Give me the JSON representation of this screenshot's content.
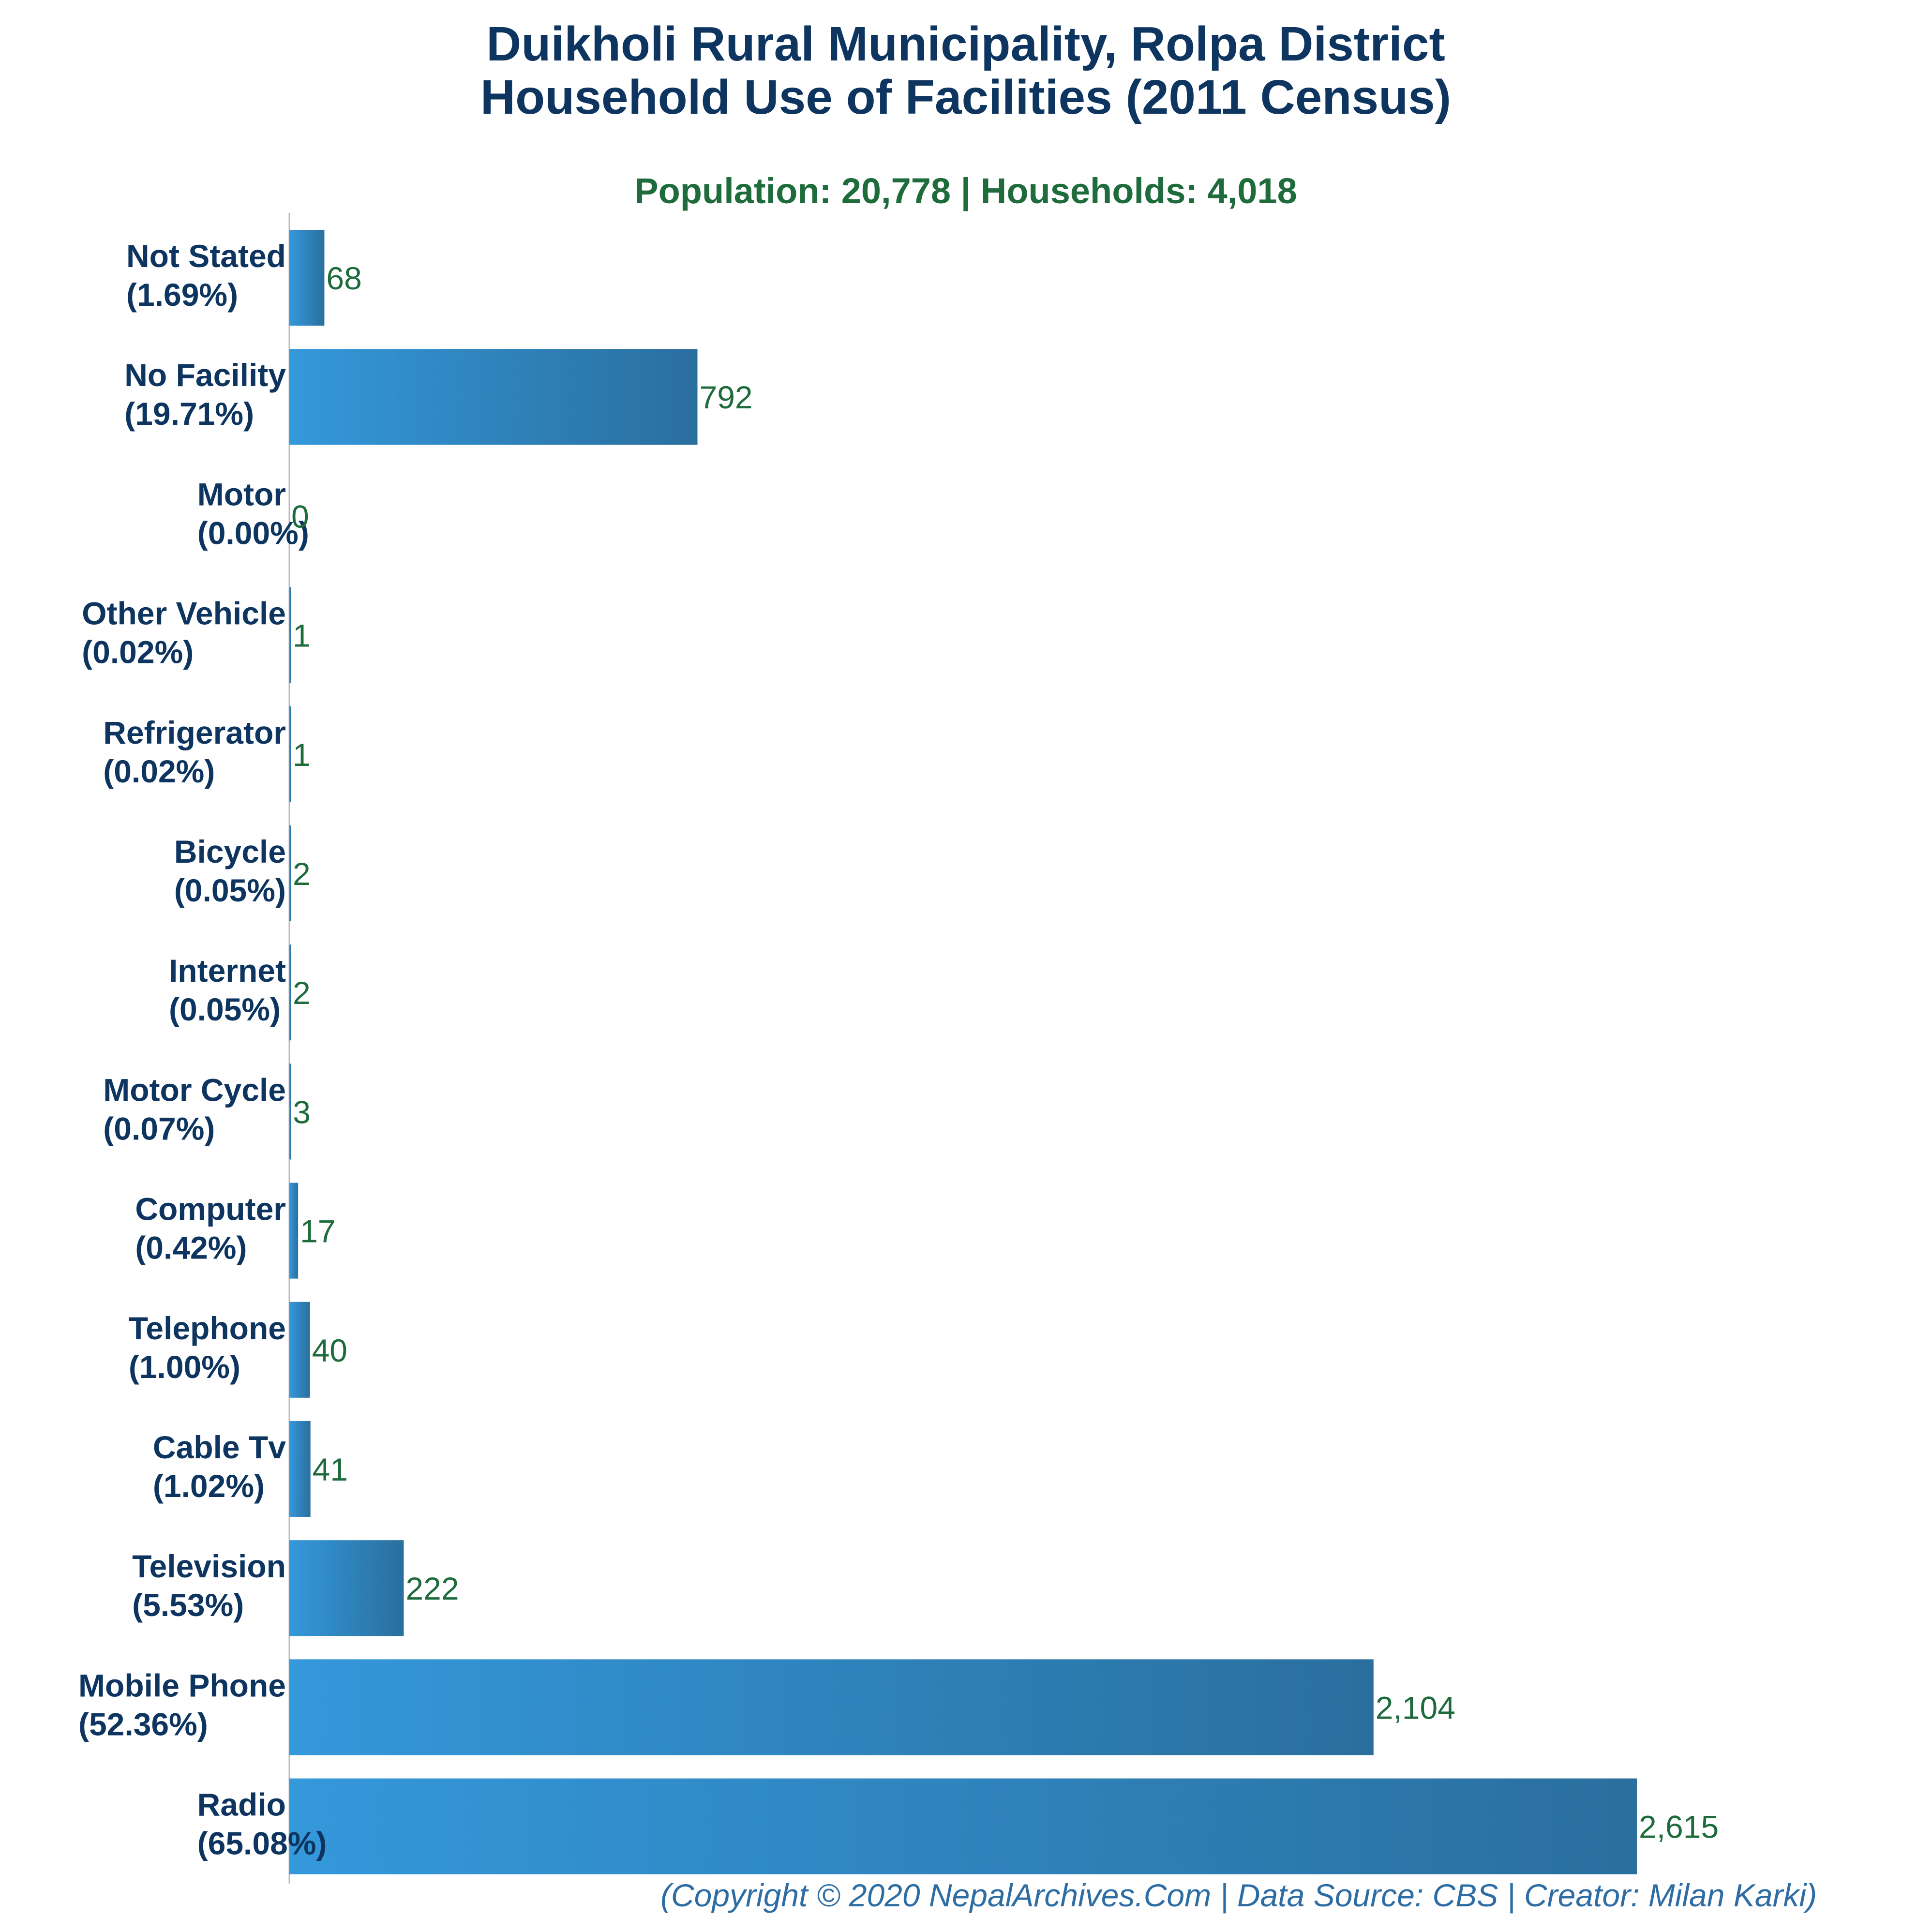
{
  "chart_data": {
    "type": "bar",
    "orientation": "horizontal",
    "title_line1": "Duikholi Rural Municipality, Rolpa District",
    "title_line2": "Household Use of Facilities (2011 Census)",
    "subtitle": "Population: 20,778 | Households: 4,018",
    "xlabel": "",
    "ylabel": "",
    "grid": false,
    "bar_color_start": "#3498db",
    "bar_color_end": "#2a6f9e",
    "categories": [
      {
        "name": "Not Stated",
        "pct": "(1.69%)",
        "value": 68,
        "value_label": "68"
      },
      {
        "name": "No Facility",
        "pct": "(19.71%)",
        "value": 792,
        "value_label": "792"
      },
      {
        "name": "Motor",
        "pct": "(0.00%)",
        "value": 0,
        "value_label": "0"
      },
      {
        "name": "Other Vehicle",
        "pct": "(0.02%)",
        "value": 1,
        "value_label": "1"
      },
      {
        "name": "Refrigerator",
        "pct": "(0.02%)",
        "value": 1,
        "value_label": "1"
      },
      {
        "name": "Bicycle",
        "pct": "(0.05%)",
        "value": 2,
        "value_label": "2"
      },
      {
        "name": "Internet",
        "pct": "(0.05%)",
        "value": 2,
        "value_label": "2"
      },
      {
        "name": "Motor Cycle",
        "pct": "(0.07%)",
        "value": 3,
        "value_label": "3"
      },
      {
        "name": "Computer",
        "pct": "(0.42%)",
        "value": 17,
        "value_label": "17"
      },
      {
        "name": "Telephone",
        "pct": "(1.00%)",
        "value": 40,
        "value_label": "40"
      },
      {
        "name": "Cable Tv",
        "pct": "(1.02%)",
        "value": 41,
        "value_label": "41"
      },
      {
        "name": "Television",
        "pct": "(5.53%)",
        "value": 222,
        "value_label": "222"
      },
      {
        "name": "Mobile Phone",
        "pct": "(52.36%)",
        "value": 2104,
        "value_label": "2,104"
      },
      {
        "name": "Radio",
        "pct": "(65.08%)",
        "value": 2615,
        "value_label": "2,615"
      }
    ]
  },
  "footer": "(Copyright © 2020 NepalArchives.Com | Data Source: CBS | Creator: Milan Karki)"
}
